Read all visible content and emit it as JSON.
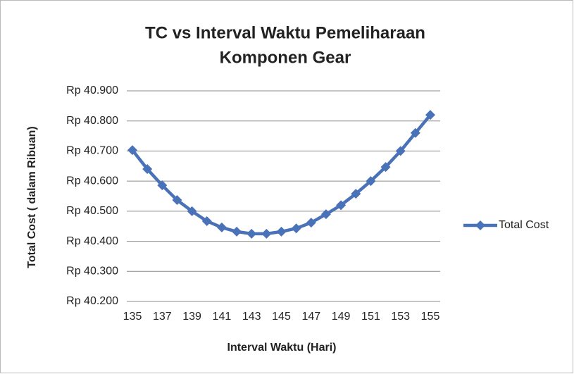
{
  "chart_data": {
    "type": "line",
    "title": [
      "TC vs Interval Waktu Pemeliharaan",
      "Komponen Gear"
    ],
    "x_label": "Interval Waktu (Hari)",
    "y_label": "Total Cost ( dalam Ribuan)",
    "x": [
      135,
      136,
      137,
      138,
      139,
      140,
      141,
      142,
      143,
      144,
      145,
      146,
      147,
      148,
      149,
      150,
      151,
      152,
      153,
      154,
      155
    ],
    "series": [
      {
        "name": "Total Cost",
        "color": "#4a72b8",
        "values": [
          40703,
          40640,
          40586,
          40537,
          40500,
          40467,
          40446,
          40432,
          40425,
          40425,
          40432,
          40443,
          40462,
          40490,
          40520,
          40558,
          40600,
          40647,
          40700,
          40760,
          40820
        ]
      }
    ],
    "xlim": [
      135,
      155
    ],
    "xticks": [
      135,
      137,
      139,
      141,
      143,
      145,
      147,
      149,
      151,
      153,
      155
    ],
    "ylim": [
      40200,
      40900
    ],
    "yticks": [
      {
        "value": 40200,
        "label": "Rp 40.200"
      },
      {
        "value": 40300,
        "label": "Rp 40.300"
      },
      {
        "value": 40400,
        "label": "Rp 40.400"
      },
      {
        "value": 40500,
        "label": "Rp 40.500"
      },
      {
        "value": 40600,
        "label": "Rp 40.600"
      },
      {
        "value": 40700,
        "label": "Rp 40.700"
      },
      {
        "value": 40800,
        "label": "Rp 40.800"
      },
      {
        "value": 40900,
        "label": "Rp 40.900"
      }
    ],
    "grid": true,
    "legend": "right"
  }
}
